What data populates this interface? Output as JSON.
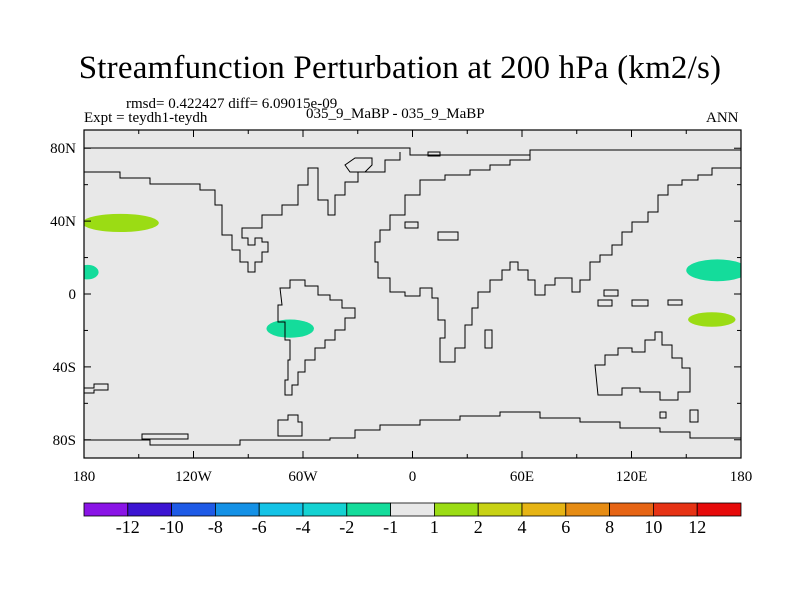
{
  "title": "Streamfunction Perturbation at 200 hPa (km2/s)",
  "stats_line": "rmsd= 0.422427 diff= 6.09015e-09",
  "expt_line": "Expt = teydh1-teydh",
  "case_line": "035_9_MaBP - 035_9_MaBP",
  "season": "ANN",
  "colors": {
    "background": "#e8e8e8",
    "frame": "#000000"
  },
  "chart_data": {
    "type": "heatmap",
    "projection": "cylindrical equidistant",
    "lon_range": [
      -180,
      180
    ],
    "lat_range": [
      -90,
      90
    ],
    "x_ticks": [
      {
        "value": -180,
        "label": "180"
      },
      {
        "value": -120,
        "label": "120W"
      },
      {
        "value": -60,
        "label": "60W"
      },
      {
        "value": 0,
        "label": "0"
      },
      {
        "value": 60,
        "label": "60E"
      },
      {
        "value": 120,
        "label": "120E"
      },
      {
        "value": 180,
        "label": "180"
      }
    ],
    "y_ticks": [
      {
        "value": 80,
        "label": "80N"
      },
      {
        "value": 40,
        "label": "40N"
      },
      {
        "value": 0,
        "label": "0"
      },
      {
        "value": -40,
        "label": "40S"
      },
      {
        "value": -80,
        "label": "80S"
      }
    ],
    "colorbar": {
      "boundary_labels": [
        "-12",
        "-10",
        "-8",
        "-6",
        "-4",
        "-2",
        "-1",
        "1",
        "2",
        "4",
        "6",
        "8",
        "10",
        "12"
      ],
      "colors": [
        "#8a14e6",
        "#3c14d2",
        "#1e5ae6",
        "#1491e6",
        "#14c3e6",
        "#14d2d2",
        "#14dc9b",
        "#e8e8e8",
        "#9bdc14",
        "#c8d214",
        "#e6b414",
        "#e68c14",
        "#e66414",
        "#e63214",
        "#e60a0a"
      ]
    },
    "anomaly_regions": [
      {
        "name": "north-pacific-positive",
        "lon": -160,
        "lat": 39,
        "half_lon": 21,
        "half_lat": 5,
        "range": "1 to 2",
        "color": "#9bdc14"
      },
      {
        "name": "dateline-west-negative",
        "lon": -178,
        "lat": 12,
        "half_lon": 6,
        "half_lat": 4,
        "range": "-2 to -1",
        "color": "#14dc9b"
      },
      {
        "name": "south-america-negative",
        "lon": -67,
        "lat": -19,
        "half_lon": 13,
        "half_lat": 5,
        "range": "-2 to -1",
        "color": "#14dc9b"
      },
      {
        "name": "west-pacific-negative",
        "lon": 167,
        "lat": 13,
        "half_lon": 17,
        "half_lat": 6,
        "range": "-2 to -1",
        "color": "#14dc9b"
      },
      {
        "name": "southwest-pacific-positive",
        "lon": 164,
        "lat": -14,
        "half_lon": 13,
        "half_lat": 4,
        "range": "1 to 2",
        "color": "#9bdc14"
      }
    ]
  }
}
